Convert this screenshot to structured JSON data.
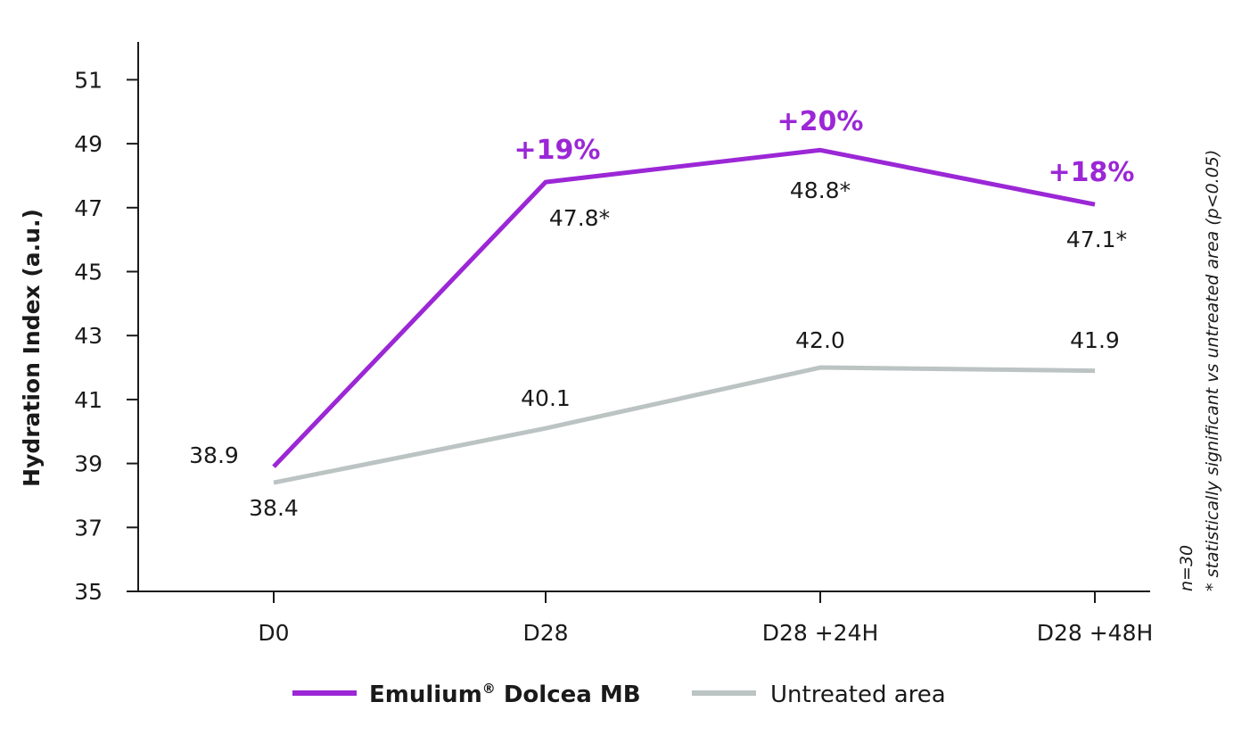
{
  "chart_data": {
    "type": "line",
    "ylabel": "Hydration Index (a.u.)",
    "xlabel": "",
    "ylim": [
      35,
      52
    ],
    "yticks": [
      35,
      37,
      39,
      41,
      43,
      45,
      47,
      49,
      51
    ],
    "categories": [
      "D0",
      "D28",
      "D28 +24H",
      "D28 +48H"
    ],
    "series": [
      {
        "name": "Emulium® Dolcea MB",
        "color": "#9b27d6",
        "values": [
          38.9,
          47.8,
          48.8,
          47.1
        ],
        "labels": [
          "38.9",
          "47.8*",
          "48.8*",
          "47.1*"
        ],
        "percent_labels": [
          "",
          "+19%",
          "+20%",
          "+18%"
        ]
      },
      {
        "name": "Untreated area",
        "color": "#bcc3c3",
        "values": [
          38.4,
          40.1,
          42.0,
          41.9
        ],
        "labels": [
          "38.4",
          "40.1",
          "42.0",
          "41.9"
        ]
      }
    ],
    "legend": {
      "position": "bottom",
      "items": [
        {
          "name_main": "Emulium",
          "name_sup": "®",
          "name_rest": " Dolcea MB",
          "color": "#9b27d6",
          "bold": true
        },
        {
          "name_main": "Untreated area",
          "name_sup": "",
          "name_rest": "",
          "color": "#bcc3c3",
          "bold": false
        }
      ]
    },
    "notes": [
      "n=30",
      "* statistically significant vs untreated area (p<0.05)"
    ],
    "grid": false
  }
}
